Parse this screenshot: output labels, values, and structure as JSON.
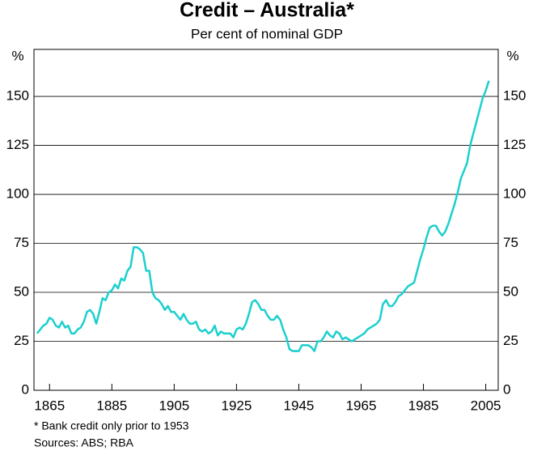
{
  "chart_data": {
    "type": "line",
    "title": "Credit – Australia*",
    "subtitle": "Per cent of nominal GDP",
    "ylabel": "%",
    "y2label": "%",
    "notes": [
      "*  Bank credit only prior to 1953",
      "Sources: ABS; RBA"
    ],
    "x": [
      1861,
      1862,
      1863,
      1864,
      1865,
      1866,
      1867,
      1868,
      1869,
      1870,
      1871,
      1872,
      1873,
      1874,
      1875,
      1876,
      1877,
      1878,
      1879,
      1880,
      1881,
      1882,
      1883,
      1884,
      1885,
      1886,
      1887,
      1888,
      1889,
      1890,
      1891,
      1892,
      1893,
      1894,
      1895,
      1896,
      1897,
      1898,
      1899,
      1900,
      1901,
      1902,
      1903,
      1904,
      1905,
      1906,
      1907,
      1908,
      1909,
      1910,
      1911,
      1912,
      1913,
      1914,
      1915,
      1916,
      1917,
      1918,
      1919,
      1920,
      1921,
      1922,
      1923,
      1924,
      1925,
      1926,
      1927,
      1928,
      1929,
      1930,
      1931,
      1932,
      1933,
      1934,
      1935,
      1936,
      1937,
      1938,
      1939,
      1940,
      1941,
      1942,
      1943,
      1944,
      1945,
      1946,
      1947,
      1948,
      1949,
      1950,
      1951,
      1952,
      1953,
      1954,
      1955,
      1956,
      1957,
      1958,
      1959,
      1960,
      1961,
      1962,
      1963,
      1964,
      1965,
      1966,
      1967,
      1968,
      1969,
      1970,
      1971,
      1972,
      1973,
      1974,
      1975,
      1976,
      1977,
      1978,
      1979,
      1980,
      1981,
      1982,
      1983,
      1984,
      1985,
      1986,
      1987,
      1988,
      1989,
      1990,
      1991,
      1992,
      1993,
      1994,
      1995,
      1996,
      1997,
      1998,
      1999,
      2000,
      2001,
      2002,
      2003,
      2004,
      2005,
      2006
    ],
    "series": [
      {
        "name": "Credit",
        "color": "#1ccfcf",
        "values": [
          29,
          31,
          33,
          34,
          37,
          36,
          33,
          32,
          35,
          32,
          33,
          29,
          29,
          31,
          32,
          35,
          40,
          41,
          39,
          34,
          40,
          47,
          46,
          50,
          51,
          54,
          52,
          57,
          56,
          61,
          63,
          73,
          73,
          72,
          70,
          61,
          61,
          50,
          47,
          46,
          44,
          41,
          43,
          40,
          40,
          38,
          36,
          39,
          36,
          34,
          34,
          35,
          31,
          30,
          31,
          29,
          30,
          33,
          28,
          30,
          29,
          29,
          29,
          27,
          31,
          32,
          31,
          34,
          39,
          45,
          46,
          44,
          41,
          41,
          38,
          36,
          36,
          38,
          36,
          31,
          27,
          21,
          20,
          20,
          20,
          23,
          23,
          23,
          22,
          20,
          25,
          25,
          27,
          30,
          28,
          27,
          30,
          29,
          26,
          27,
          26,
          25,
          26,
          27,
          28,
          29,
          31,
          32,
          33,
          34,
          36,
          44,
          46,
          43,
          43,
          45,
          48,
          49,
          51,
          53,
          54,
          55,
          61,
          67,
          72,
          78,
          83,
          84,
          84,
          81,
          79,
          81,
          85,
          90,
          95,
          101,
          108,
          112,
          116,
          125,
          131,
          137,
          143,
          149,
          153,
          158
        ]
      }
    ],
    "xlim": [
      1860,
      2009
    ],
    "xticks": [
      1865,
      1885,
      1905,
      1925,
      1945,
      1965,
      1985,
      2005
    ],
    "ylim": [
      0,
      174
    ],
    "yticks": [
      0,
      25,
      50,
      75,
      100,
      125,
      150
    ],
    "grid": true
  }
}
